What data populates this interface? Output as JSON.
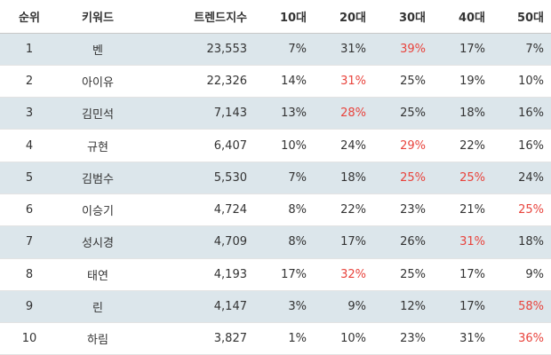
{
  "table": {
    "headers": {
      "rank": "순위",
      "keyword": "키워드",
      "trend": "트렌드지수",
      "age10": "10대",
      "age20": "20대",
      "age30": "30대",
      "age40": "40대",
      "age50": "50대"
    },
    "highlight_color": "#e8433c",
    "row_shade_color": "#dce6eb",
    "rows": [
      {
        "rank": "1",
        "keyword": "벤",
        "trend": "23,553",
        "age10": "7%",
        "age20": "31%",
        "age30": "39%",
        "age40": "17%",
        "age50": "7%",
        "highlight": [
          "age30"
        ]
      },
      {
        "rank": "2",
        "keyword": "아이유",
        "trend": "22,326",
        "age10": "14%",
        "age20": "31%",
        "age30": "25%",
        "age40": "19%",
        "age50": "10%",
        "highlight": [
          "age20"
        ]
      },
      {
        "rank": "3",
        "keyword": "김민석",
        "trend": "7,143",
        "age10": "13%",
        "age20": "28%",
        "age30": "25%",
        "age40": "18%",
        "age50": "16%",
        "highlight": [
          "age20"
        ]
      },
      {
        "rank": "4",
        "keyword": "규현",
        "trend": "6,407",
        "age10": "10%",
        "age20": "24%",
        "age30": "29%",
        "age40": "22%",
        "age50": "16%",
        "highlight": [
          "age30"
        ]
      },
      {
        "rank": "5",
        "keyword": "김범수",
        "trend": "5,530",
        "age10": "7%",
        "age20": "18%",
        "age30": "25%",
        "age40": "25%",
        "age50": "24%",
        "highlight": [
          "age30",
          "age40"
        ]
      },
      {
        "rank": "6",
        "keyword": "이승기",
        "trend": "4,724",
        "age10": "8%",
        "age20": "22%",
        "age30": "23%",
        "age40": "21%",
        "age50": "25%",
        "highlight": [
          "age50"
        ]
      },
      {
        "rank": "7",
        "keyword": "성시경",
        "trend": "4,709",
        "age10": "8%",
        "age20": "17%",
        "age30": "26%",
        "age40": "31%",
        "age50": "18%",
        "highlight": [
          "age40"
        ]
      },
      {
        "rank": "8",
        "keyword": "태연",
        "trend": "4,193",
        "age10": "17%",
        "age20": "32%",
        "age30": "25%",
        "age40": "17%",
        "age50": "9%",
        "highlight": [
          "age20"
        ]
      },
      {
        "rank": "9",
        "keyword": "린",
        "trend": "4,147",
        "age10": "3%",
        "age20": "9%",
        "age30": "12%",
        "age40": "17%",
        "age50": "58%",
        "highlight": [
          "age50"
        ]
      },
      {
        "rank": "10",
        "keyword": "하림",
        "trend": "3,827",
        "age10": "1%",
        "age20": "10%",
        "age30": "23%",
        "age40": "31%",
        "age50": "36%",
        "highlight": [
          "age50"
        ]
      }
    ]
  }
}
